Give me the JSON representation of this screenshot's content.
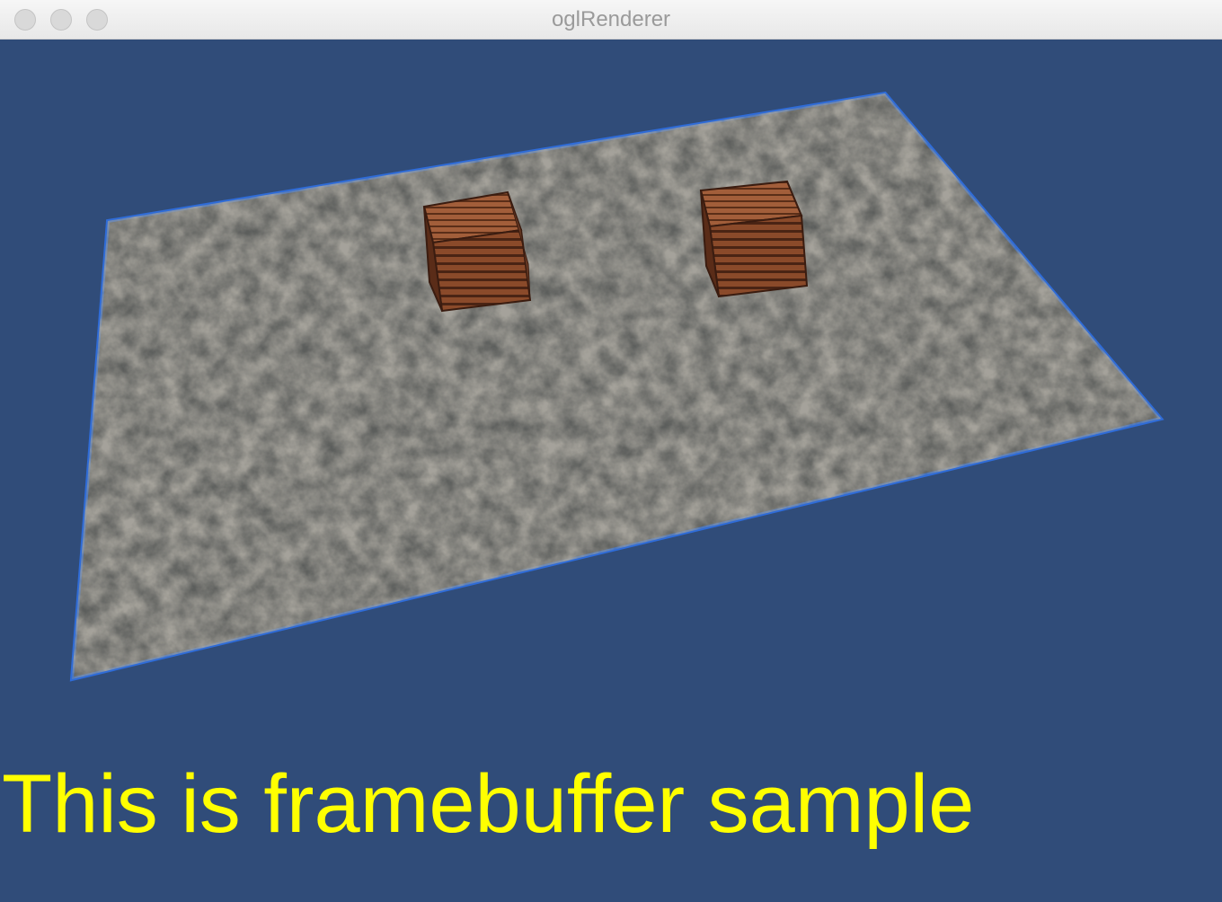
{
  "window": {
    "title": "oglRenderer"
  },
  "viewport": {
    "overlay_text": "This is framebuffer sample"
  },
  "colors": {
    "background": "#304c79",
    "text": "#ffff00"
  }
}
